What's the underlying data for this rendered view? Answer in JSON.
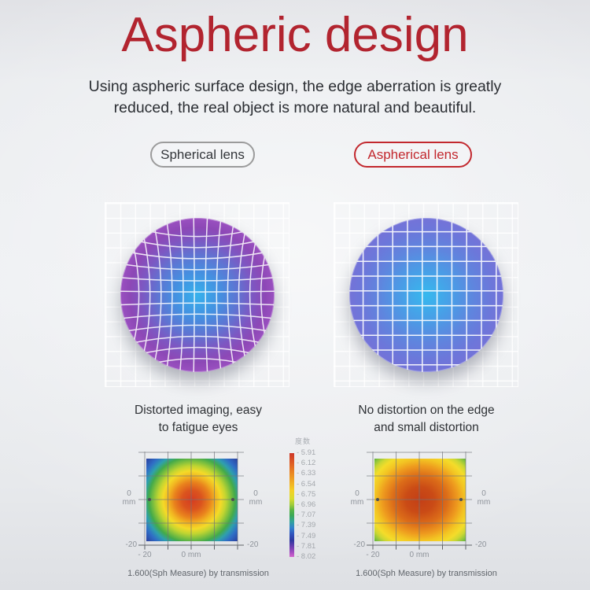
{
  "header": {
    "title": "Aspheric design",
    "subtitle_lines": [
      "Using aspheric surface design, the edge aberration is greatly",
      "reduced, the real object is more natural and beautiful."
    ]
  },
  "panels": {
    "left": {
      "badge": "Spherical lens",
      "caption_lines": [
        "Distorted imaging, easy",
        "to fatigue eyes"
      ],
      "footnote": "1.600(Sph Measure) by transmission"
    },
    "right": {
      "badge": "Aspherical lens",
      "caption_lines": [
        "No distortion on the edge",
        "and small distortion"
      ],
      "footnote": "1.600(Sph Measure) by transmission"
    }
  },
  "maps": {
    "axis_labels": {
      "zero": "0",
      "unit": "mm",
      "neg20": "-20",
      "bottom_neg20": "- 20",
      "bottom_zero": "0 mm"
    },
    "legend": {
      "title": "度数",
      "values": [
        "- 5.91",
        "- 6.12",
        "- 6.33",
        "- 6.54",
        "- 6.75",
        "- 6.96",
        "- 7.07",
        "- 7.39",
        "- 7.49",
        "- 7.81",
        "- 8.02"
      ]
    }
  },
  "colors": {
    "title_red": "#b2242f",
    "badge_red": "#c2282e",
    "badge_gray_border": "#9b9b9b",
    "body_text": "#2e3135",
    "axis_text": "#8e939a",
    "lens_left_center": "#35b2ec",
    "lens_left_rim": "#9a50c0",
    "lens_right_center": "#36b9ee",
    "lens_right_rim": "#7473d8",
    "heat_center_red": "#d53c22",
    "heat_corner_blue_left": "#2b3f9e",
    "heat_corner_green_right": "#5bb23c"
  },
  "chart_data": [
    {
      "type": "heatmap",
      "label": "Spherical lens",
      "x_axis": {
        "unit": "mm",
        "labeled_ticks": [
          -20,
          0
        ]
      },
      "y_axis": {
        "unit": "mm",
        "labeled_ticks": [
          -20,
          0
        ]
      },
      "legend_title": "度数",
      "legend_ticks_diopter": [
        -5.91,
        -6.12,
        -6.33,
        -6.54,
        -6.75,
        -6.96,
        -7.07,
        -7.39,
        -7.49,
        -7.81,
        -8.02
      ],
      "approx_values_diopter": {
        "center": -5.91,
        "edge_midpoint": -7.1,
        "corner": -7.9
      },
      "pattern": "tight radial: red center, yellow/green rings, blue corners"
    },
    {
      "type": "heatmap",
      "label": "Aspherical lens",
      "x_axis": {
        "unit": "mm",
        "labeled_ticks": [
          -20,
          0
        ]
      },
      "y_axis": {
        "unit": "mm",
        "labeled_ticks": [
          -20,
          0
        ]
      },
      "legend_title": "度数",
      "legend_ticks_diopter": [
        -5.91,
        -6.12,
        -6.33,
        -6.54,
        -6.75,
        -6.96,
        -7.07,
        -7.39,
        -7.49,
        -7.81,
        -8.02
      ],
      "approx_values_diopter": {
        "center": -6.0,
        "edge_midpoint": -6.6,
        "corner": -7.0
      },
      "pattern": "wide orange/red plateau, yellow edges, green corners"
    }
  ]
}
